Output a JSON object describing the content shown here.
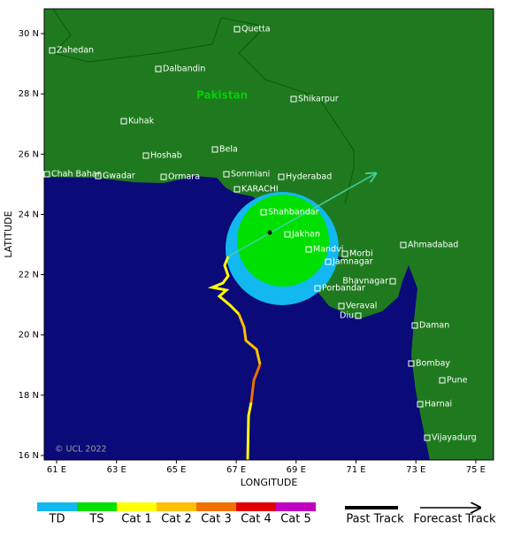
{
  "map": {
    "country_label": "Pakistan",
    "copyright": "© UCL 2022",
    "cities": [
      "Quetta",
      "Zahedan",
      "Dalbandin",
      "Shikarpur",
      "Kuhak",
      "Hoshab",
      "Bela",
      "Chah Bahar",
      "Gwadar",
      "Ormara",
      "Sonmiani",
      "Hyderabad",
      "KARACHI",
      "Shahbandar",
      "Jakhan",
      "Mandvi",
      "Morbi",
      "Jamnagar",
      "Ahmadabad",
      "Bhavnagar",
      "Porbandar",
      "Veraval",
      "Diu",
      "Daman",
      "Bombay",
      "Pune",
      "Harnai",
      "Vijayadurg"
    ],
    "x_axis": {
      "title": "LONGITUDE",
      "ticks": [
        "61 E",
        "63 E",
        "65 E",
        "67 E",
        "69 E",
        "71 E",
        "73 E",
        "75 E"
      ]
    },
    "y_axis": {
      "title": "LATITUDE",
      "ticks": [
        "30 N",
        "28 N",
        "26 N",
        "24 N",
        "22 N",
        "20 N",
        "18 N",
        "16 N"
      ]
    }
  },
  "legend": {
    "categories": [
      {
        "label": "TD",
        "color": "#12b8f0"
      },
      {
        "label": "TS",
        "color": "#00e000"
      },
      {
        "label": "Cat 1",
        "color": "#ffff00"
      },
      {
        "label": "Cat 2",
        "color": "#ffc000"
      },
      {
        "label": "Cat 3",
        "color": "#f07000"
      },
      {
        "label": "Cat 4",
        "color": "#e00000"
      },
      {
        "label": "Cat 5",
        "color": "#c000c0"
      }
    ],
    "past_track": "Past Track",
    "forecast_track": "Forecast Track"
  }
}
